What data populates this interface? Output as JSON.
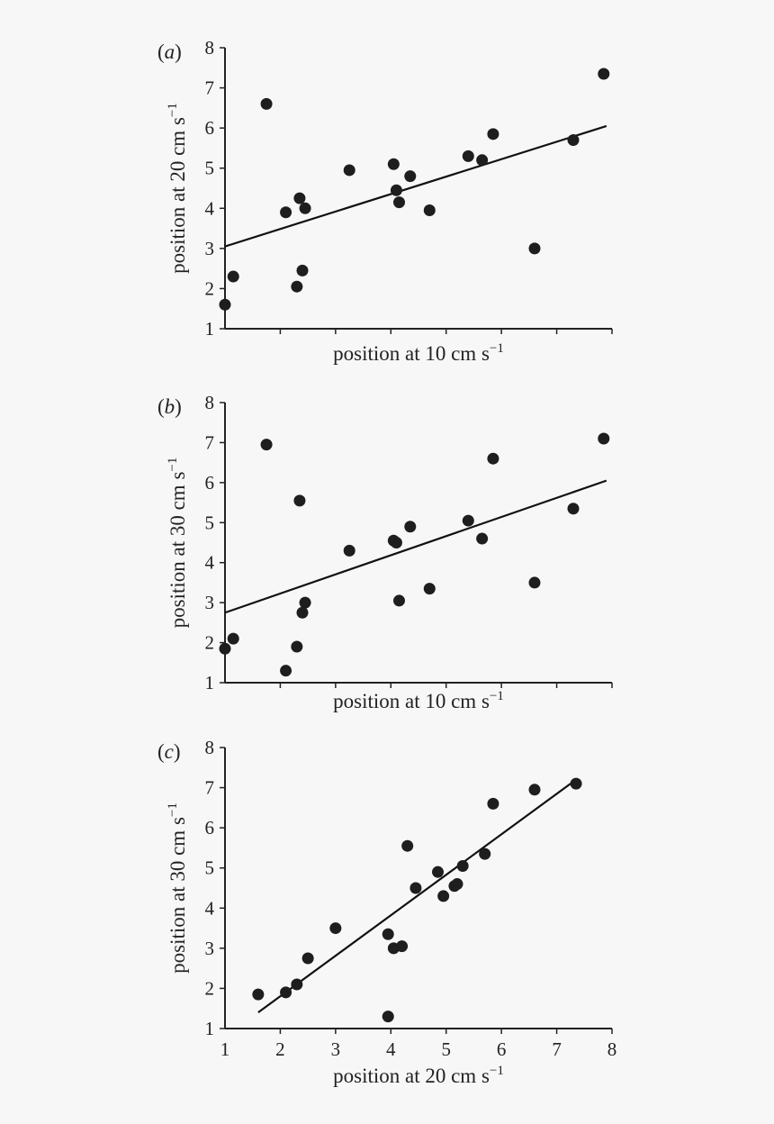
{
  "chart_data": [
    {
      "type": "scatter",
      "panel": "(a)",
      "xlabel": "position at 10 cm s",
      "xlabel_sup": "−1",
      "ylabel": "position at 20 cm s",
      "ylabel_sup": "−1",
      "xlim": [
        1,
        8
      ],
      "ylim": [
        1,
        8
      ],
      "y_ticks": [
        "1",
        "2",
        "3",
        "4",
        "5",
        "6",
        "7",
        "8"
      ],
      "x_ticks": [],
      "x": [
        1.0,
        1.15,
        1.75,
        2.1,
        2.3,
        2.35,
        2.4,
        2.45,
        3.25,
        4.05,
        4.1,
        4.15,
        4.35,
        4.7,
        5.4,
        5.65,
        5.85,
        6.6,
        7.3,
        7.85
      ],
      "y": [
        1.6,
        2.3,
        6.6,
        3.9,
        2.05,
        4.25,
        2.45,
        4.0,
        4.95,
        5.1,
        4.45,
        4.15,
        4.8,
        3.95,
        5.3,
        5.2,
        5.85,
        3.0,
        5.7,
        7.35
      ],
      "fit_line": [
        [
          1.0,
          3.05
        ],
        [
          7.9,
          6.05
        ]
      ]
    },
    {
      "type": "scatter",
      "panel": "(b)",
      "xlabel": "position at 10 cm s",
      "xlabel_sup": "−1",
      "ylabel": "position at 30 cm s",
      "ylabel_sup": "−1",
      "xlim": [
        1,
        8
      ],
      "ylim": [
        1,
        8
      ],
      "y_ticks": [
        "1",
        "2",
        "3",
        "4",
        "5",
        "6",
        "7",
        "8"
      ],
      "x_ticks": [],
      "x": [
        1.0,
        1.15,
        1.75,
        2.1,
        2.3,
        2.35,
        2.4,
        2.45,
        3.25,
        4.05,
        4.1,
        4.15,
        4.35,
        4.7,
        5.4,
        5.65,
        5.85,
        6.6,
        7.3,
        7.85
      ],
      "y": [
        1.85,
        2.1,
        6.95,
        1.3,
        1.9,
        5.55,
        2.75,
        3.0,
        4.3,
        4.55,
        4.5,
        3.05,
        4.9,
        3.35,
        5.05,
        4.6,
        6.6,
        3.5,
        5.35,
        7.1
      ],
      "fit_line": [
        [
          1.0,
          2.75
        ],
        [
          7.9,
          6.05
        ]
      ]
    },
    {
      "type": "scatter",
      "panel": "(c)",
      "xlabel": "position at 20 cm s",
      "xlabel_sup": "−1",
      "ylabel": "position at 30 cm s",
      "ylabel_sup": "−1",
      "xlim": [
        1,
        8
      ],
      "ylim": [
        1,
        8
      ],
      "y_ticks": [
        "1",
        "2",
        "3",
        "4",
        "5",
        "6",
        "7",
        "8"
      ],
      "x_ticks": [
        "1",
        "2",
        "3",
        "4",
        "5",
        "6",
        "7",
        "8"
      ],
      "x": [
        1.6,
        2.1,
        2.3,
        2.5,
        3.0,
        3.95,
        3.95,
        4.05,
        4.2,
        4.3,
        4.45,
        4.85,
        4.95,
        5.15,
        5.2,
        5.3,
        5.7,
        5.85,
        6.6,
        7.35
      ],
      "y": [
        1.85,
        1.9,
        2.1,
        2.75,
        3.5,
        1.3,
        3.35,
        3.0,
        3.05,
        5.55,
        4.5,
        4.9,
        4.3,
        4.55,
        4.6,
        5.05,
        5.35,
        6.6,
        6.95,
        7.1
      ],
      "fit_line": [
        [
          1.6,
          1.4
        ],
        [
          7.3,
          7.15
        ]
      ]
    }
  ]
}
